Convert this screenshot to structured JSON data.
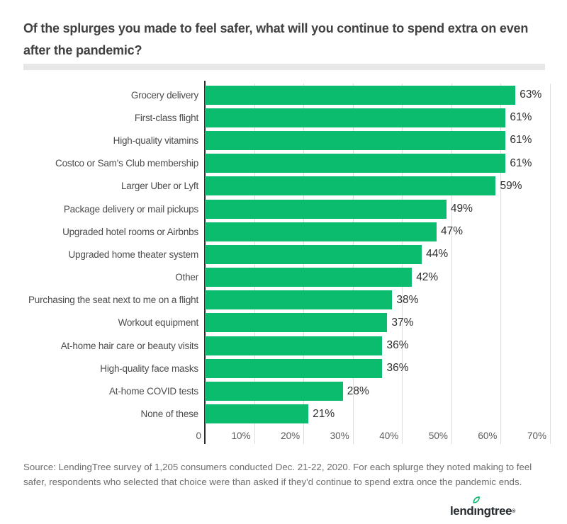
{
  "title": "Of the splurges you made to feel safer, what will you continue to spend extra on even after the pandemic?",
  "chart_data": {
    "type": "bar",
    "orientation": "horizontal",
    "title": "Of the splurges you made to feel safer, what will you continue to spend extra on even after the pandemic?",
    "categories": [
      "Grocery delivery",
      "First-class flight",
      "High-quality vitamins",
      "Costco or Sam's Club membership",
      "Larger Uber or Lyft",
      "Package delivery or mail pickups",
      "Upgraded hotel rooms or Airbnbs",
      "Upgraded home theater system",
      "Other",
      "Purchasing the seat next to me on a flight",
      "Workout equipment",
      "At-home hair care or beauty visits",
      "High-quality face masks",
      "At-home COVID tests",
      "None of these"
    ],
    "values": [
      63,
      61,
      61,
      61,
      59,
      49,
      47,
      44,
      42,
      38,
      37,
      36,
      36,
      28,
      21
    ],
    "value_labels": [
      "63%",
      "61%",
      "61%",
      "61%",
      "59%",
      "49%",
      "47%",
      "44%",
      "42%",
      "38%",
      "37%",
      "36%",
      "36%",
      "28%",
      "21%"
    ],
    "xlabel": "",
    "ylabel": "",
    "xlim": [
      0,
      70
    ],
    "x_ticks": [
      "0",
      "10%",
      "20%",
      "30%",
      "40%",
      "50%",
      "60%",
      "70%"
    ],
    "grid": "vertical-light",
    "legend": "none",
    "bar_color": "#0bbc6e"
  },
  "source_note": "Source: LendingTree survey of 1,205 consumers conducted Dec. 21-22, 2020. For each splurge they noted making to feel safer, respondents who selected that choice were than asked if they'd continue to spend extra once the pandemic ends.",
  "logo": {
    "prefix": "lend",
    "leaf_letter": "ı",
    "suffix": "ngtree",
    "mark": "®",
    "leaf_color": "#00b467",
    "text_color": "#262c30"
  },
  "colors": {
    "bar_green": "#0bbc6e",
    "title_text": "#414042",
    "category_text": "#4c4c4c",
    "value_text": "#2e2e2e",
    "tick_text": "#58595b",
    "gridline": "#dedede",
    "axis_line": "#2e2b2c",
    "divider": "#e7e7e7",
    "source_text": "#6d6d6d",
    "background": "#ffffff"
  }
}
